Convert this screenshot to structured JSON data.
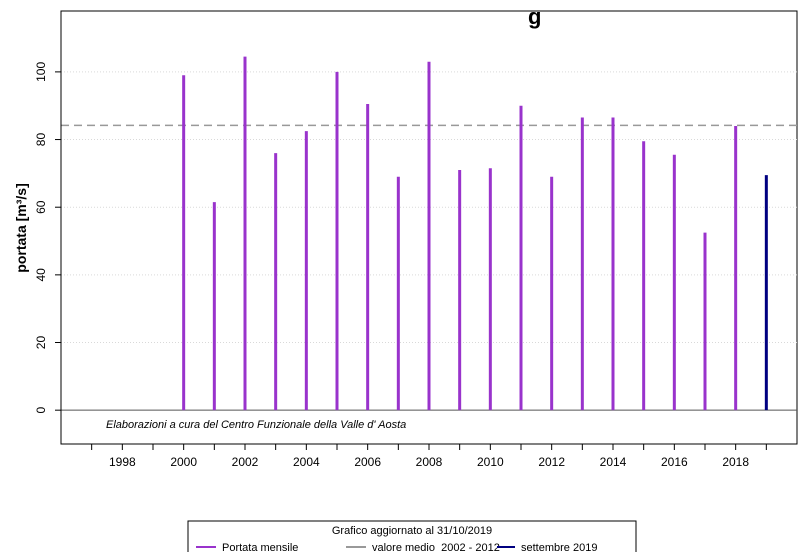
{
  "chart_data": {
    "type": "bar",
    "title": "g",
    "xlabel": "",
    "ylabel": "portata [m³/s]",
    "ylim": [
      -10,
      118
    ],
    "xlim": [
      1996,
      2020
    ],
    "grid": "horizontal dotted",
    "x_ticks": [
      "1998",
      "2000",
      "2002",
      "2004",
      "2006",
      "2008",
      "2010",
      "2012",
      "2014",
      "2016",
      "2018"
    ],
    "y_ticks": [
      "0",
      "20",
      "40",
      "60",
      "80",
      "100"
    ],
    "credit": "Elaborazioni a cura del Centro Funzionale della Valle d' Aosta",
    "series": [
      {
        "name": "Portata mensile",
        "color": "#9933cc",
        "x": [
          2000,
          2001,
          2002,
          2003,
          2004,
          2005,
          2006,
          2007,
          2008,
          2009,
          2010,
          2011,
          2012,
          2013,
          2014,
          2015,
          2016,
          2017,
          2018
        ],
        "values": [
          99,
          61.5,
          104.5,
          76,
          82.5,
          100,
          90.5,
          69,
          103,
          71,
          71.5,
          90,
          69,
          86.5,
          86.5,
          79.5,
          75.5,
          52.5,
          84
        ]
      },
      {
        "name": "valore medio  2002 - 2012",
        "color": "#999999",
        "style": "dashed",
        "value": 84.2
      },
      {
        "name": "settembre 2019",
        "color": "#000080",
        "x": [
          2019
        ],
        "values": [
          69.5
        ]
      }
    ],
    "legend": {
      "position": "bottom",
      "header": "Grafico aggiornato al 31/10/2019"
    }
  }
}
